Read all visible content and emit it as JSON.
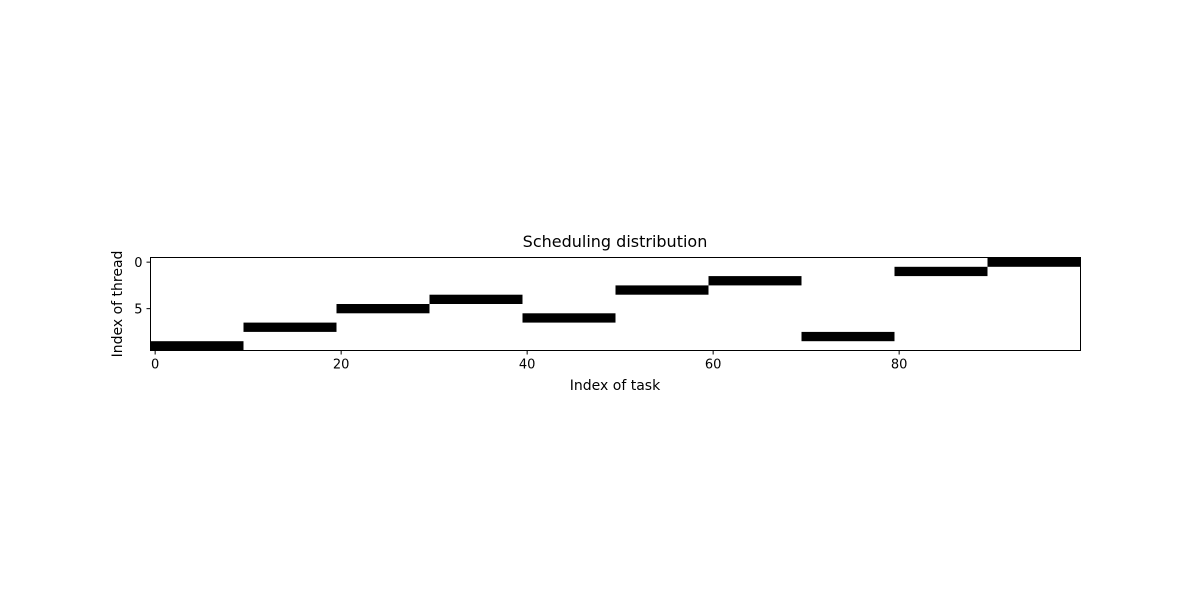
{
  "chart_data": {
    "type": "heatmap",
    "title": "Scheduling distribution",
    "xlabel": "Index of task",
    "ylabel": "Index of thread",
    "xlim": [
      0,
      99
    ],
    "ylim": [
      9,
      0
    ],
    "y_inverted": true,
    "xticks": [
      0,
      20,
      40,
      60,
      80
    ],
    "yticks": [
      0,
      5
    ],
    "colormap": "binary",
    "cell_color": "#000000",
    "background_color": "#ffffff",
    "grid": false,
    "legend": "none",
    "segments": [
      {
        "task_start": 0,
        "task_end": 9,
        "thread": 9
      },
      {
        "task_start": 10,
        "task_end": 19,
        "thread": 7
      },
      {
        "task_start": 20,
        "task_end": 29,
        "thread": 5
      },
      {
        "task_start": 30,
        "task_end": 39,
        "thread": 4
      },
      {
        "task_start": 40,
        "task_end": 49,
        "thread": 6
      },
      {
        "task_start": 50,
        "task_end": 59,
        "thread": 3
      },
      {
        "task_start": 60,
        "task_end": 69,
        "thread": 2
      },
      {
        "task_start": 70,
        "task_end": 79,
        "thread": 8
      },
      {
        "task_start": 80,
        "task_end": 89,
        "thread": 1
      },
      {
        "task_start": 90,
        "task_end": 99,
        "thread": 0
      }
    ]
  }
}
